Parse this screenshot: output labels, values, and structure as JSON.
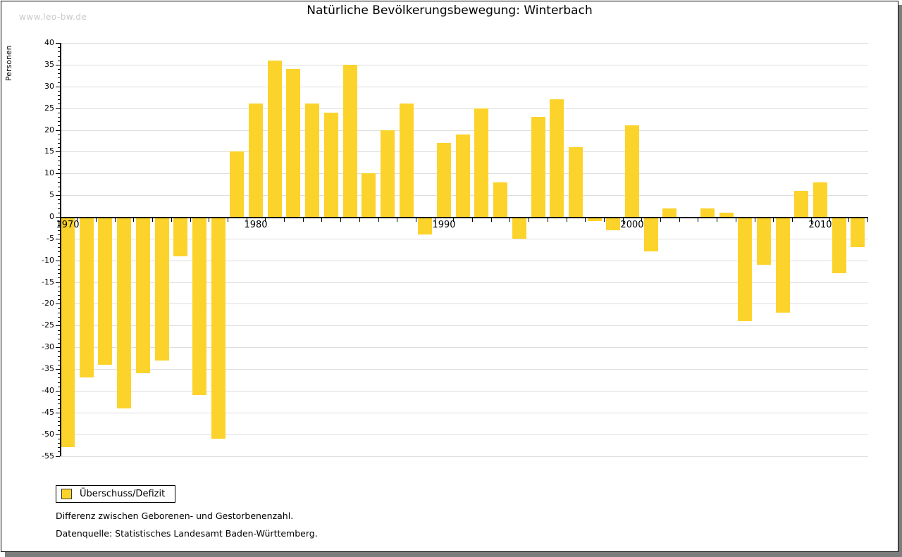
{
  "watermark": "www.leo-bw.de",
  "title": "Natürliche Bevölkerungsbewegung: Winterbach",
  "legend": {
    "label": "Überschuss/Defizit",
    "swatch_color": "#fcd32b"
  },
  "footnotes": [
    "Differenz zwischen Geborenen- und Gestorbenenzahl.",
    "Datenquelle: Statistisches Landesamt Baden-Württemberg."
  ],
  "chart_data": {
    "type": "bar",
    "title": "Natürliche Bevölkerungsbewegung: Winterbach",
    "xlabel": "",
    "ylabel": "Personen",
    "ylim": [
      -55,
      40
    ],
    "ytick_step": 5,
    "x_major_ticks": [
      1970,
      1980,
      1990,
      2000,
      2010
    ],
    "grid": true,
    "legend_position": "bottom-left",
    "bar_color": "#fcd32b",
    "gridline_color": "#dedede",
    "series": [
      {
        "name": "Überschuss/Defizit",
        "x": [
          1970,
          1971,
          1972,
          1973,
          1974,
          1975,
          1976,
          1977,
          1978,
          1979,
          1980,
          1981,
          1982,
          1983,
          1984,
          1985,
          1986,
          1987,
          1988,
          1989,
          1990,
          1991,
          1992,
          1993,
          1994,
          1995,
          1996,
          1997,
          1998,
          1999,
          2000,
          2001,
          2002,
          2003,
          2004,
          2005,
          2006,
          2007,
          2008,
          2009,
          2010,
          2011,
          2012
        ],
        "values": [
          -53,
          -37,
          -34,
          -44,
          -36,
          -33,
          -9,
          -41,
          -51,
          15,
          26,
          36,
          34,
          26,
          24,
          35,
          10,
          20,
          26,
          -4,
          17,
          19,
          25,
          8,
          -5,
          23,
          27,
          16,
          -1,
          -3,
          21,
          -8,
          2,
          0,
          2,
          1,
          -24,
          -11,
          -22,
          6,
          8,
          -13,
          -7
        ]
      }
    ]
  }
}
